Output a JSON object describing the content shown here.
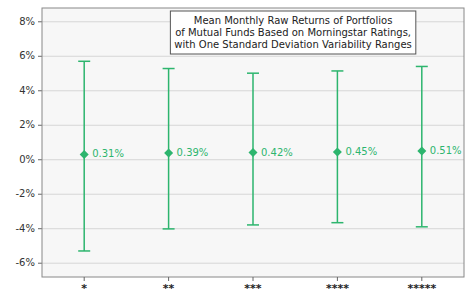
{
  "chart_data": {
    "type": "errorbar",
    "title": "Mean Monthly Raw Returns of Portfolios\nof Mutual Funds Based on Morningstar Ratings,\nwith One Standard Deviation Variability Ranges",
    "categories": [
      "*",
      "**",
      "***",
      "****",
      "*****"
    ],
    "values": [
      0.0031,
      0.0039,
      0.0042,
      0.0045,
      0.0051
    ],
    "value_labels": [
      "0.31%",
      "0.39%",
      "0.42%",
      "0.45%",
      "0.51%"
    ],
    "error_upper": [
      0.054,
      0.049,
      0.046,
      0.047,
      0.049
    ],
    "error_lower": [
      0.056,
      0.044,
      0.042,
      0.041,
      0.044
    ],
    "color": "#2db56e",
    "ylim": [
      -0.068,
      0.088
    ],
    "yticks": [
      {
        "value": -0.06,
        "label": "-6%"
      },
      {
        "value": -0.04,
        "label": "-4%"
      },
      {
        "value": -0.02,
        "label": "-2%"
      },
      {
        "value": 0.0,
        "label": "0%"
      },
      {
        "value": 0.02,
        "label": "2%"
      },
      {
        "value": 0.04,
        "label": "4%"
      },
      {
        "value": 0.06,
        "label": "6%"
      },
      {
        "value": 0.08,
        "label": "8%"
      }
    ],
    "grid": true,
    "data_labels": true
  }
}
